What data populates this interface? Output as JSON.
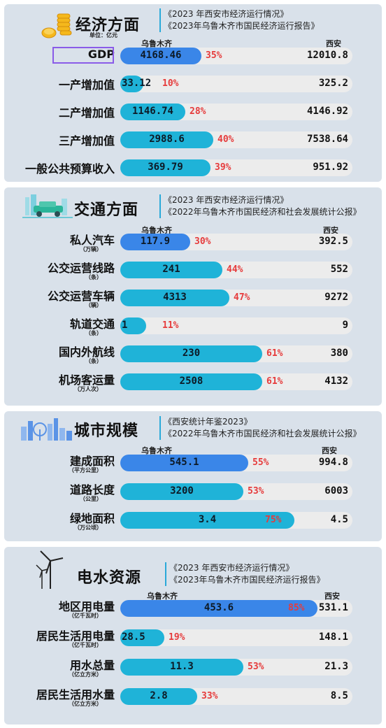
{
  "colors": {
    "panel": "#d9e1ea",
    "fill": "#1fb3d8",
    "fill_highlight": "#3a86e8",
    "pct": "#e63b3b",
    "track": "#ececec"
  },
  "sections": [
    {
      "title": "经济方面",
      "unit_note": "单位：亿元",
      "sources": [
        "《2023 年西安市经济运行情况》",
        "《2023年乌鲁木齐市国民经济运行报告》"
      ],
      "col_left": "乌鲁木齐",
      "col_right": "西安",
      "icon": "coins-icon",
      "rows": [
        {
          "label": "GDP",
          "sub": "",
          "value": "4168.46",
          "pct": "35%",
          "ratio": 0.35,
          "xian": "12010.8",
          "blue": true
        },
        {
          "label": "一产增加值",
          "sub": "",
          "value": "33.12",
          "pct": "10%",
          "ratio": 0.1,
          "xian": "325.2",
          "blue": false
        },
        {
          "label": "二产增加值",
          "sub": "",
          "value": "1146.74",
          "pct": "28%",
          "ratio": 0.28,
          "xian": "4146.92",
          "blue": false
        },
        {
          "label": "三产增加值",
          "sub": "",
          "value": "2988.6",
          "pct": "40%",
          "ratio": 0.4,
          "xian": "7538.64",
          "blue": false
        },
        {
          "label": "一般公共预算收入",
          "sub": "",
          "value": "369.79",
          "pct": "39%",
          "ratio": 0.39,
          "xian": "951.92",
          "blue": false
        }
      ]
    },
    {
      "title": "交通方面",
      "unit_note": "",
      "sources": [
        "《2023 年西安市经济运行情况》",
        "《2022年乌鲁木齐市国民经济和社会发展统计公报》"
      ],
      "col_left": "乌鲁木齐",
      "col_right": "西安",
      "icon": "traffic-icon",
      "rows": [
        {
          "label": "私人汽车",
          "sub": "（万辆）",
          "value": "117.9",
          "pct": "30%",
          "ratio": 0.3,
          "xian": "392.5",
          "blue": true
        },
        {
          "label": "公交运营线路",
          "sub": "（条）",
          "value": "241",
          "pct": "44%",
          "ratio": 0.44,
          "xian": "552",
          "blue": false
        },
        {
          "label": "公交运营车辆",
          "sub": "（辆）",
          "value": "4313",
          "pct": "47%",
          "ratio": 0.47,
          "xian": "9272",
          "blue": false
        },
        {
          "label": "轨道交通",
          "sub": "（条）",
          "value": "1",
          "pct": "11%",
          "ratio": 0.11,
          "xian": "9",
          "blue": false
        },
        {
          "label": "国内外航线",
          "sub": "（条）",
          "value": "230",
          "pct": "61%",
          "ratio": 0.61,
          "xian": "380",
          "blue": false
        },
        {
          "label": "机场客运量",
          "sub": "（万人次）",
          "value": "2508",
          "pct": "61%",
          "ratio": 0.61,
          "xian": "4132",
          "blue": false
        }
      ]
    },
    {
      "title": "城市规模",
      "unit_note": "",
      "sources": [
        "《西安统计年鉴2023》",
        "《2022年乌鲁木齐市国民经济和社会发展统计公报》"
      ],
      "col_left": "乌鲁木齐",
      "col_right": "西安",
      "icon": "skyline-icon",
      "rows": [
        {
          "label": "建成面积",
          "sub": "（平方公里）",
          "value": "545.1",
          "pct": "55%",
          "ratio": 0.55,
          "xian": "994.8",
          "blue": true
        },
        {
          "label": "道路长度",
          "sub": "（公里）",
          "value": "3200",
          "pct": "53%",
          "ratio": 0.53,
          "xian": "6003",
          "blue": false
        },
        {
          "label": "绿地面积",
          "sub": "（万公顷）",
          "value": "3.4",
          "pct": "75%",
          "ratio": 0.75,
          "xian": "4.5",
          "blue": false
        }
      ]
    },
    {
      "title": "电水资源",
      "unit_note": "",
      "sources": [
        "《2023 年西安市经济运行情况》",
        "《2023年乌鲁木齐市国民经济运行报告》"
      ],
      "col_left": "乌鲁木齐",
      "col_right": "西安",
      "icon": "wind-turbine-icon",
      "rows": [
        {
          "label": "地区用电量",
          "sub": "（亿千瓦时）",
          "value": "453.6",
          "pct": "85%",
          "ratio": 0.85,
          "xian": "531.1",
          "blue": true
        },
        {
          "label": "居民生活用电量",
          "sub": "（亿千瓦时）",
          "value": "28.5",
          "pct": "19%",
          "ratio": 0.19,
          "xian": "148.1",
          "blue": false
        },
        {
          "label": "用水总量",
          "sub": "（亿立方米）",
          "value": "11.3",
          "pct": "53%",
          "ratio": 0.53,
          "xian": "21.3",
          "blue": false
        },
        {
          "label": "居民生活用水量",
          "sub": "（亿立方米）",
          "value": "2.8",
          "pct": "33%",
          "ratio": 0.33,
          "xian": "8.5",
          "blue": false
        }
      ]
    }
  ]
}
